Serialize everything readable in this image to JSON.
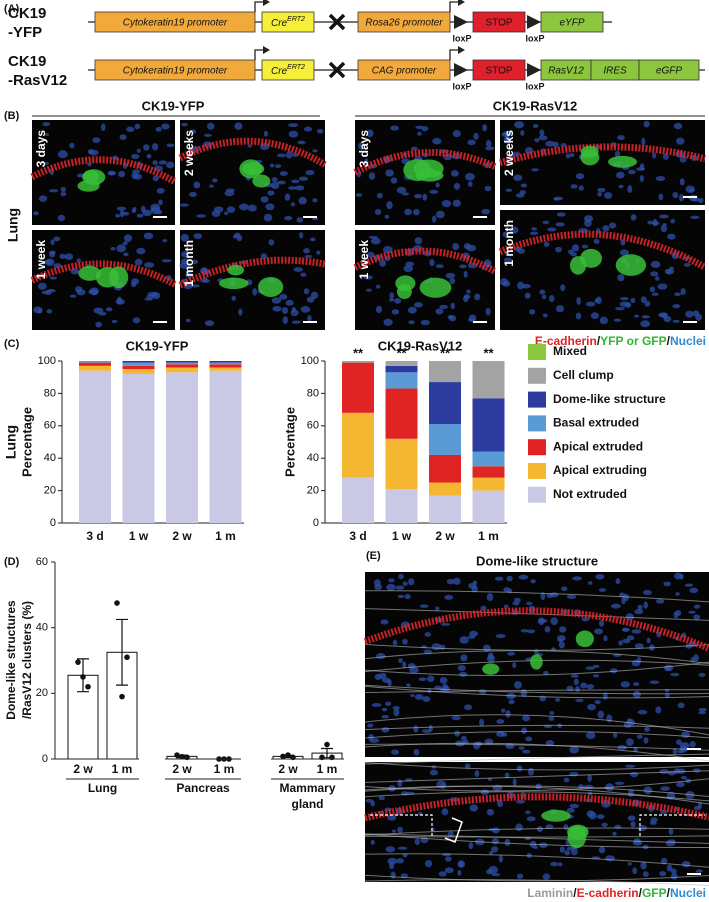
{
  "figure": {
    "panel_a": {
      "label": "(A)",
      "constructs": [
        {
          "name_lines": [
            "CK19",
            "-YFP"
          ],
          "promoter": "Cytokeratin19 promoter",
          "cre": "Cre",
          "cre_sup": "ERT2",
          "reporter_promoter": "Rosa26 promoter",
          "loxp": [
            "loxP",
            "loxP"
          ],
          "stop": "STOP",
          "cassette": [
            "eYFP"
          ]
        },
        {
          "name_lines": [
            "CK19",
            "-RasV12"
          ],
          "promoter": "Cytokeratin19 promoter",
          "cre": "Cre",
          "cre_sup": "ERT2",
          "reporter_promoter": "CAG promoter",
          "loxp": [
            "loxP",
            "loxP"
          ],
          "stop": "STOP",
          "cassette": [
            "RasV12",
            "IRES",
            "eGFP"
          ]
        }
      ]
    },
    "panel_b": {
      "label": "(B)",
      "row_label": "Lung",
      "groups": [
        {
          "title": "CK19-YFP",
          "images": [
            "3 days",
            "2 weeks",
            "1 week",
            "1 month"
          ]
        },
        {
          "title": "CK19-RasV12",
          "images": [
            "3 days",
            "2 weeks",
            "1 week",
            "1 month"
          ]
        }
      ],
      "stain_legend": [
        "E-cadherin",
        "/",
        "YFP or GFP",
        "/",
        "Nuclei"
      ]
    },
    "panel_e": {
      "label": "(E)",
      "title": "Dome-like structure",
      "stain_legend": [
        "Laminin",
        "/",
        "E-cadherin",
        "/",
        "GFP",
        "/",
        "Nuclei"
      ]
    }
  },
  "chart_data": [
    {
      "type": "stacked_bar",
      "label": "(C)",
      "row_label": "Lung",
      "ylabel": "Percentage",
      "categories": [
        "3 d",
        "1 w",
        "2 w",
        "1 m"
      ],
      "ylim": [
        0,
        100
      ],
      "yticks": [
        0,
        20,
        40,
        60,
        80,
        100
      ],
      "series": [
        {
          "name": "Mixed",
          "color": "#8dc63f"
        },
        {
          "name": "Cell clump",
          "color": "#a3a3a3"
        },
        {
          "name": "Dome-like structure",
          "color": "#2c3b9e"
        },
        {
          "name": "Basal extruded",
          "color": "#5b9bd5"
        },
        {
          "name": "Apical extruded",
          "color": "#e02424"
        },
        {
          "name": "Apical extruding",
          "color": "#f5b731"
        },
        {
          "name": "Not extruded",
          "color": "#c9c9e6"
        }
      ],
      "subplots": [
        {
          "title": "CK19-YFP",
          "values": [
            [
              0,
              0,
              0,
              0
            ],
            [
              0,
              0,
              0,
              0
            ],
            [
              0,
              1,
              1,
              1
            ],
            [
              1,
              2,
              1,
              1
            ],
            [
              2,
              2,
              2,
              2
            ],
            [
              3,
              3,
              3,
              2
            ],
            [
              94,
              92,
              93,
              94
            ]
          ]
        },
        {
          "title": "CK19-RasV12",
          "annotations": [
            "**",
            "**",
            "**",
            "**"
          ],
          "values": [
            [
              0,
              0,
              0,
              0
            ],
            [
              1,
              3,
              13,
              23
            ],
            [
              0,
              4,
              26,
              33
            ],
            [
              0,
              10,
              19,
              9
            ],
            [
              31,
              31,
              17,
              7
            ],
            [
              40,
              31,
              8,
              8
            ],
            [
              28,
              21,
              17,
              20
            ]
          ]
        }
      ]
    },
    {
      "type": "bar",
      "label": "(D)",
      "ylabel_lines": [
        "Dome-like structures",
        "/RasV12 clusters (%)"
      ],
      "ylim": [
        0,
        60
      ],
      "yticks": [
        0,
        20,
        40,
        60
      ],
      "color": "#ffffff",
      "groups": [
        {
          "name_lines": [
            "Lung"
          ],
          "categories": [
            "2 w",
            "1 m"
          ],
          "values": [
            25.5,
            32.5
          ],
          "errors": [
            5,
            10
          ],
          "points": [
            [
              29.5,
              22,
              25
            ],
            [
              47.5,
              31,
              19
            ]
          ]
        },
        {
          "name_lines": [
            "Pancreas"
          ],
          "categories": [
            "2 w",
            "1 m"
          ],
          "values": [
            0.8,
            0
          ],
          "errors": [
            0.4,
            0
          ],
          "points": [
            [
              1.2,
              0.5,
              0.7
            ],
            [
              0,
              0,
              0
            ]
          ]
        },
        {
          "name_lines": [
            "Mammary",
            "gland"
          ],
          "categories": [
            "2 w",
            "1 m"
          ],
          "values": [
            0.8,
            1.8
          ],
          "errors": [
            0.3,
            1.4
          ],
          "points": [
            [
              0.8,
              0.5,
              1.2
            ],
            [
              0.5,
              0.5,
              4.4
            ]
          ]
        }
      ]
    }
  ]
}
